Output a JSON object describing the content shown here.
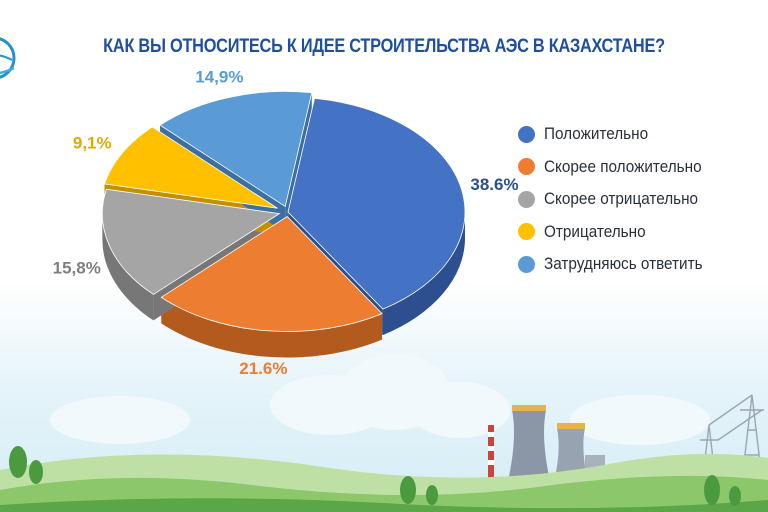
{
  "title": "КАК ВЫ ОТНОСИТЕСЬ К ИДЕЕ СТРОИТЕЛЬСТВА АЭС В КАЗАХСТАНЕ?",
  "colors": {
    "title": "#1f4f9e",
    "sky": "#eaf6fb",
    "hill_light": "#bfe0a5",
    "hill_mid": "#8cc86b",
    "hill_dark": "#5aa648",
    "tower": "#8b97a6"
  },
  "chart_data": {
    "type": "pie",
    "style": "3d",
    "legend_position": "right",
    "slices": [
      {
        "label": "Положительно",
        "value": 38.6,
        "display": "38.6%",
        "color": "#4472c4",
        "side_color": "#2d4f8f"
      },
      {
        "label": "Скорее положительно",
        "value": 21.6,
        "display": "21.6%",
        "color": "#ed7d31",
        "side_color": "#b35a1f"
      },
      {
        "label": "Скорее отрицательно",
        "value": 15.8,
        "display": "15,8%",
        "color": "#a5a5a5",
        "side_color": "#777777"
      },
      {
        "label": "Отрицательно",
        "value": 9.1,
        "display": "9,1%",
        "color": "#ffc000",
        "side_color": "#c49000"
      },
      {
        "label": "Затрудняюсь ответить",
        "value": 14.9,
        "display": "14,9%",
        "color": "#5b9bd5",
        "side_color": "#3c70a3"
      }
    ]
  }
}
